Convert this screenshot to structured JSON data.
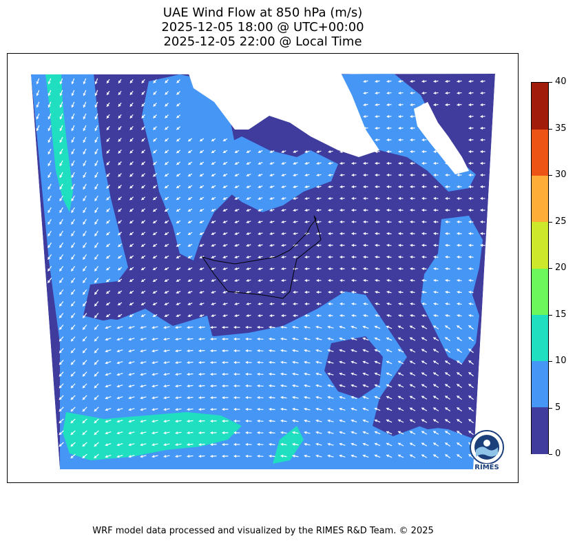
{
  "title": {
    "line1": "UAE Wind Flow at 850 hPa (m/s)",
    "line2": "2025-12-05 18:00 @ UTC+00:00",
    "line3": "2025-12-05 22:00 @ Local Time"
  },
  "colorbar": {
    "ticks": [
      "0",
      "5",
      "10",
      "15",
      "20",
      "25",
      "30",
      "35",
      "40"
    ],
    "colors": [
      "#3f3c9e",
      "#4596f5",
      "#1fdfc0",
      "#6cf85d",
      "#cde72a",
      "#fdad38",
      "#ec5416",
      "#a11c0a"
    ]
  },
  "footer": "WRF model data processed and visualized by the RIMES R&D Team. © 2025",
  "logo": {
    "text": "RIMES",
    "ring_text": "Regional Integrated Multi-Hazard Early Warning System"
  },
  "map": {
    "background_color": "#3f3c9e",
    "landmass_color": "#ffffff",
    "arrow_color": "#ffffff",
    "boundary_color": "#000000"
  }
}
